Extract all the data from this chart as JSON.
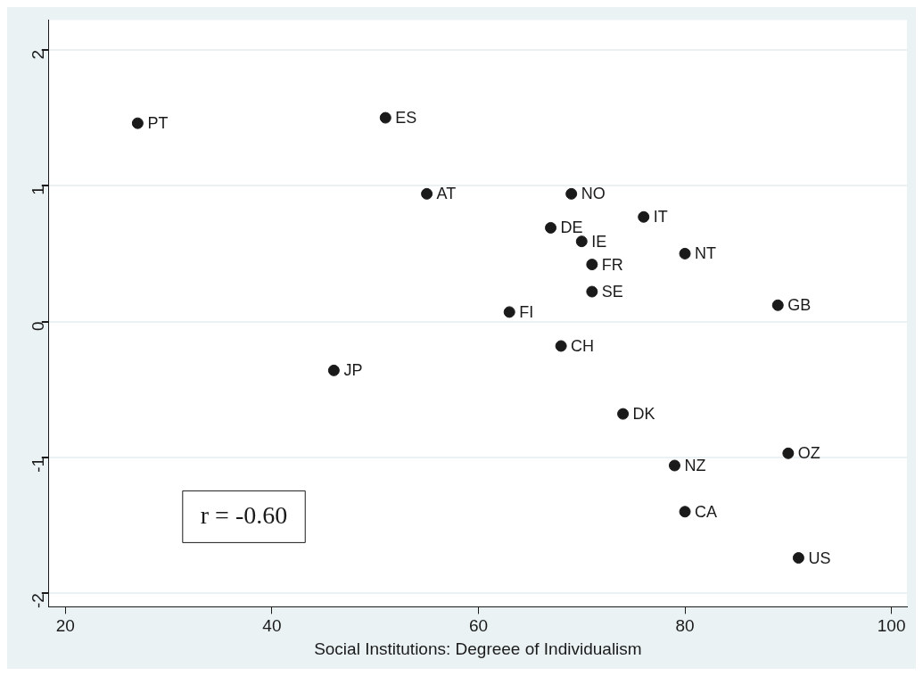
{
  "chart_data": {
    "type": "scatter",
    "xlabel": "Social Institutions: Degreee of Individualism",
    "x": [
      27,
      51,
      55,
      69,
      76,
      67,
      70,
      80,
      71,
      71,
      89,
      63,
      68,
      46,
      74,
      90,
      79,
      80,
      91
    ],
    "values": [
      1.46,
      1.5,
      0.94,
      0.94,
      0.77,
      0.69,
      0.59,
      0.5,
      0.42,
      0.22,
      0.12,
      0.07,
      -0.18,
      -0.36,
      -0.68,
      -0.97,
      -1.06,
      -1.4,
      -1.74
    ],
    "color": "#1a1a1a",
    "marker": "circle",
    "grid": "y",
    "xlim": [
      18.4,
      101.5
    ],
    "xticks": [
      20,
      40,
      60,
      80,
      100
    ],
    "ylim": [
      -2.1,
      2.22
    ],
    "yticks": [
      -2,
      -1,
      0,
      1,
      2
    ],
    "annotations": [
      {
        "text": "PT",
        "x": 27,
        "y": 1.46
      },
      {
        "text": "ES",
        "x": 51,
        "y": 1.5
      },
      {
        "text": "AT",
        "x": 55,
        "y": 0.94
      },
      {
        "text": "NO",
        "x": 69,
        "y": 0.94
      },
      {
        "text": "IT",
        "x": 76,
        "y": 0.77
      },
      {
        "text": "DE",
        "x": 67,
        "y": 0.69
      },
      {
        "text": "IE",
        "x": 70,
        "y": 0.59
      },
      {
        "text": "NT",
        "x": 80,
        "y": 0.5
      },
      {
        "text": "FR",
        "x": 71,
        "y": 0.42
      },
      {
        "text": "SE",
        "x": 71,
        "y": 0.22
      },
      {
        "text": "GB",
        "x": 89,
        "y": 0.12
      },
      {
        "text": "FI",
        "x": 63,
        "y": 0.07
      },
      {
        "text": "CH",
        "x": 68,
        "y": -0.18
      },
      {
        "text": "JP",
        "x": 46,
        "y": -0.36
      },
      {
        "text": "DK",
        "x": 74,
        "y": -0.68
      },
      {
        "text": "OZ",
        "x": 90,
        "y": -0.97
      },
      {
        "text": "NZ",
        "x": 79,
        "y": -1.06
      },
      {
        "text": "CA",
        "x": 80,
        "y": -1.4
      },
      {
        "text": "US",
        "x": 91,
        "y": -1.74
      },
      "r = -0.60"
    ]
  }
}
